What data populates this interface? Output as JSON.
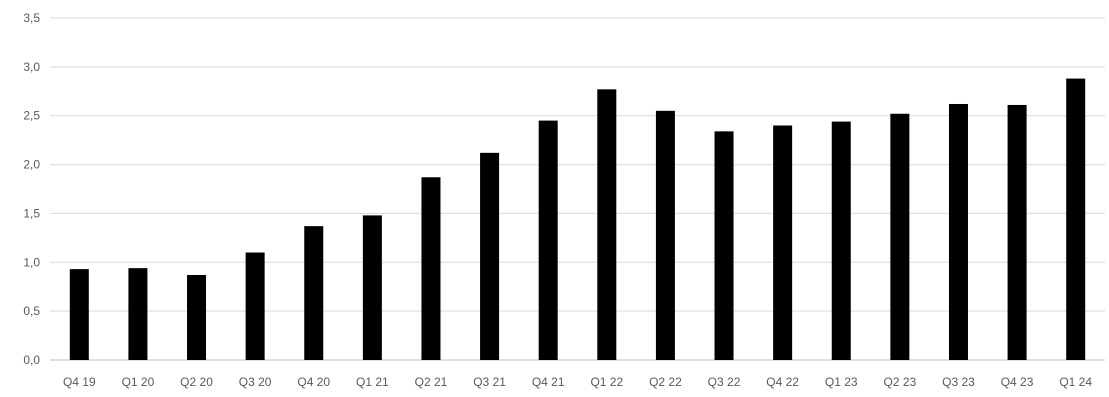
{
  "chart_data": {
    "type": "bar",
    "title": "",
    "xlabel": "",
    "ylabel": "",
    "categories": [
      "Q4 19",
      "Q1 20",
      "Q2 20",
      "Q3 20",
      "Q4 20",
      "Q1 21",
      "Q2 21",
      "Q3 21",
      "Q4 21",
      "Q1 22",
      "Q2 22",
      "Q3 22",
      "Q4 22",
      "Q1 23",
      "Q2 23",
      "Q3 23",
      "Q4 23",
      "Q1 24"
    ],
    "values": [
      0.93,
      0.94,
      0.87,
      1.1,
      1.37,
      1.48,
      1.87,
      2.12,
      2.45,
      2.77,
      2.55,
      2.34,
      2.4,
      2.44,
      2.52,
      2.62,
      2.61,
      2.88
    ],
    "ylim": [
      0,
      3.5
    ],
    "yticks": [
      "0,0",
      "0,5",
      "1,0",
      "1,5",
      "2,0",
      "2,5",
      "3,0",
      "3,5"
    ],
    "grid": true,
    "legend": "none",
    "bar_color": "#000000",
    "grid_color": "#d9d9d9",
    "text_color": "#595959"
  }
}
